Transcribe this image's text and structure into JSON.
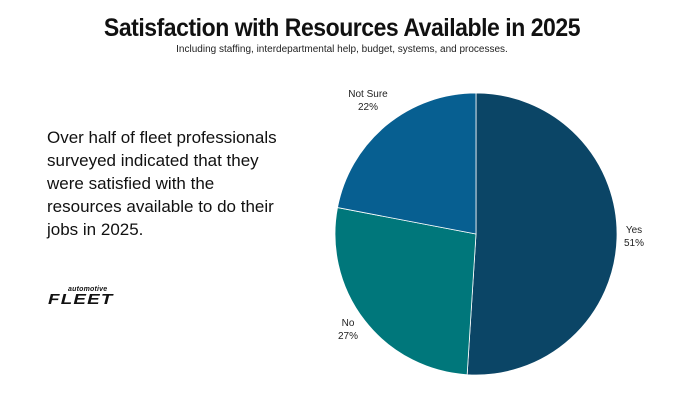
{
  "title": "Satisfaction with Resources Available in 2025",
  "subtitle": "Including staffing, interdepartmental help, budget, systems, and processes.",
  "description": "Over half of fleet professionals surveyed indicated that they were satisfied with the resources available to do their jobs in 2025.",
  "logo": {
    "small": "automotive",
    "big": "FLEET"
  },
  "chart_data": {
    "type": "pie",
    "title": "Satisfaction with Resources Available in 2025",
    "slices": [
      {
        "label": "Yes",
        "value": 51,
        "display": "51%",
        "color": "#0b4566"
      },
      {
        "label": "No",
        "value": 27,
        "display": "27%",
        "color": "#00777b"
      },
      {
        "label": "Not Sure",
        "value": 22,
        "display": "22%",
        "color": "#075f91"
      }
    ],
    "start_angle_deg": 0,
    "direction": "clockwise",
    "legend": "none"
  }
}
